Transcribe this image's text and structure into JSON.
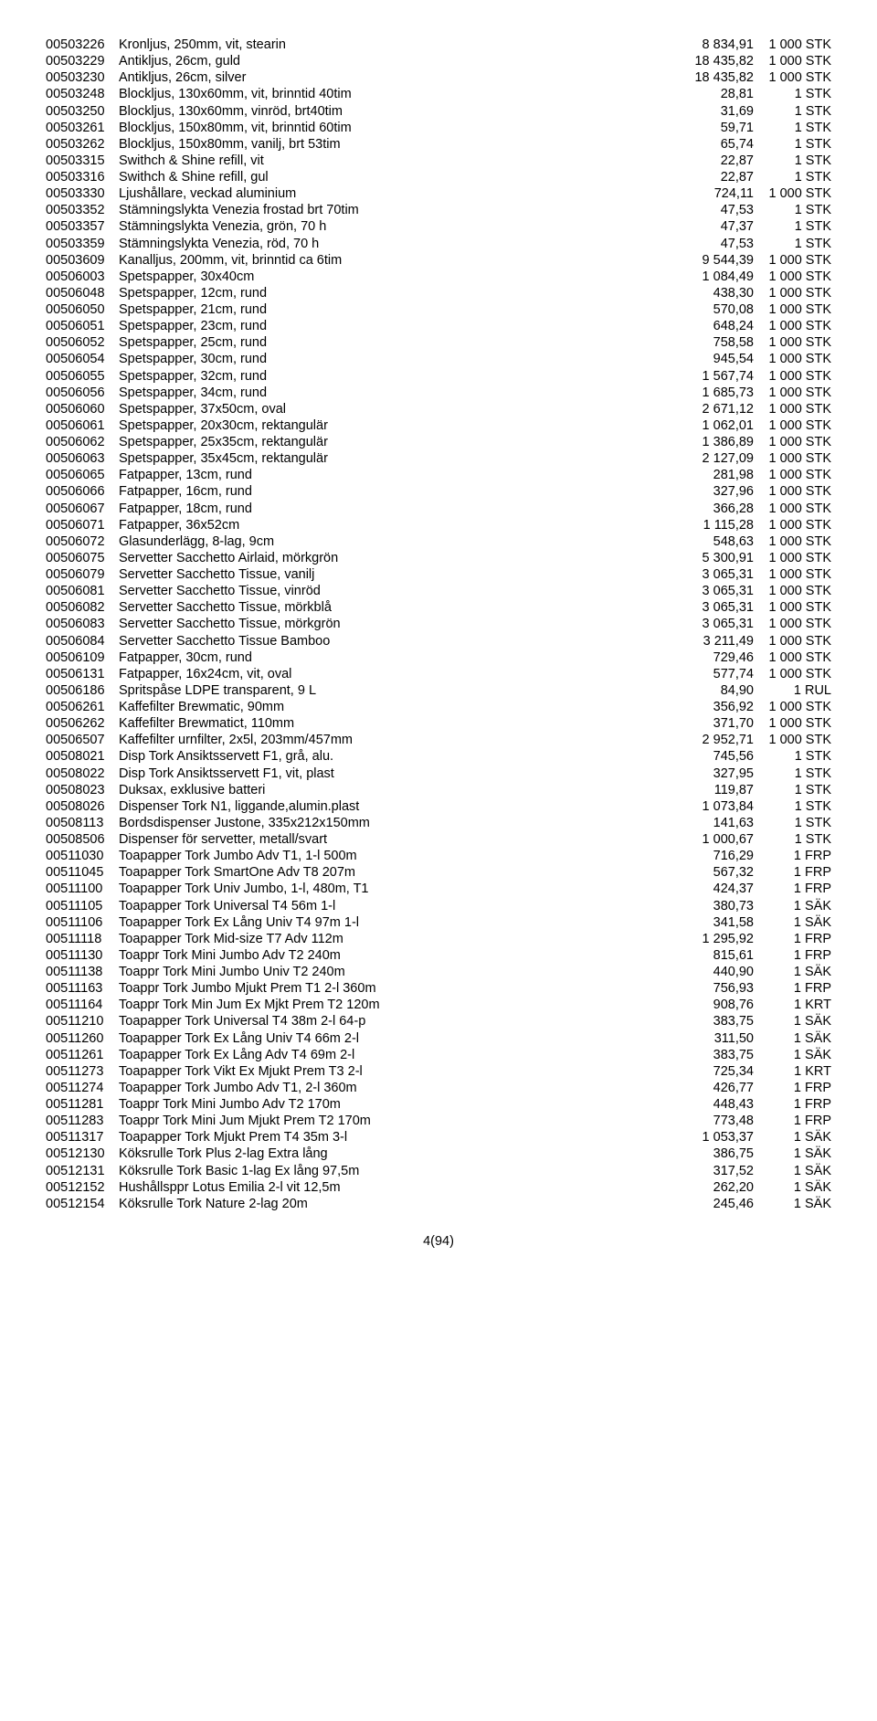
{
  "footer": "4(94)",
  "rows": [
    {
      "code": "00503226",
      "desc": "Kronljus, 250mm, vit, stearin",
      "price": "8 834,91",
      "qty": "1 000 STK"
    },
    {
      "code": "00503229",
      "desc": "Antikljus, 26cm, guld",
      "price": "18 435,82",
      "qty": "1 000 STK"
    },
    {
      "code": "00503230",
      "desc": "Antikljus, 26cm, silver",
      "price": "18 435,82",
      "qty": "1 000 STK"
    },
    {
      "code": "00503248",
      "desc": "Blockljus, 130x60mm, vit, brinntid 40tim",
      "price": "28,81",
      "qty": "1 STK"
    },
    {
      "code": "00503250",
      "desc": "Blockljus, 130x60mm, vinröd, brt40tim",
      "price": "31,69",
      "qty": "1 STK"
    },
    {
      "code": "00503261",
      "desc": "Blockljus, 150x80mm, vit, brinntid 60tim",
      "price": "59,71",
      "qty": "1 STK"
    },
    {
      "code": "00503262",
      "desc": "Blockljus, 150x80mm, vanilj, brt 53tim",
      "price": "65,74",
      "qty": "1 STK"
    },
    {
      "code": "00503315",
      "desc": "Swithch & Shine refill, vit",
      "price": "22,87",
      "qty": "1 STK"
    },
    {
      "code": "00503316",
      "desc": "Swithch & Shine refill, gul",
      "price": "22,87",
      "qty": "1 STK"
    },
    {
      "code": "00503330",
      "desc": "Ljushållare, veckad aluminium",
      "price": "724,11",
      "qty": "1 000 STK"
    },
    {
      "code": "00503352",
      "desc": "Stämningslykta Venezia frostad brt 70tim",
      "price": "47,53",
      "qty": "1 STK"
    },
    {
      "code": "00503357",
      "desc": "Stämningslykta Venezia, grön, 70 h",
      "price": "47,37",
      "qty": "1 STK"
    },
    {
      "code": "00503359",
      "desc": "Stämningslykta Venezia, röd, 70 h",
      "price": "47,53",
      "qty": "1 STK"
    },
    {
      "code": "00503609",
      "desc": "Kanalljus, 200mm, vit, brinntid ca 6tim",
      "price": "9 544,39",
      "qty": "1 000 STK"
    },
    {
      "code": "00506003",
      "desc": "Spetspapper, 30x40cm",
      "price": "1 084,49",
      "qty": "1 000 STK"
    },
    {
      "code": "00506048",
      "desc": "Spetspapper, 12cm, rund",
      "price": "438,30",
      "qty": "1 000 STK"
    },
    {
      "code": "00506050",
      "desc": "Spetspapper, 21cm, rund",
      "price": "570,08",
      "qty": "1 000 STK"
    },
    {
      "code": "00506051",
      "desc": "Spetspapper, 23cm, rund",
      "price": "648,24",
      "qty": "1 000 STK"
    },
    {
      "code": "00506052",
      "desc": "Spetspapper, 25cm, rund",
      "price": "758,58",
      "qty": "1 000 STK"
    },
    {
      "code": "00506054",
      "desc": "Spetspapper, 30cm, rund",
      "price": "945,54",
      "qty": "1 000 STK"
    },
    {
      "code": "00506055",
      "desc": "Spetspapper, 32cm, rund",
      "price": "1 567,74",
      "qty": "1 000 STK"
    },
    {
      "code": "00506056",
      "desc": "Spetspapper, 34cm, rund",
      "price": "1 685,73",
      "qty": "1 000 STK"
    },
    {
      "code": "00506060",
      "desc": "Spetspapper, 37x50cm, oval",
      "price": "2 671,12",
      "qty": "1 000 STK"
    },
    {
      "code": "00506061",
      "desc": "Spetspapper, 20x30cm, rektangulär",
      "price": "1 062,01",
      "qty": "1 000 STK"
    },
    {
      "code": "00506062",
      "desc": "Spetspapper, 25x35cm, rektangulär",
      "price": "1 386,89",
      "qty": "1 000 STK"
    },
    {
      "code": "00506063",
      "desc": "Spetspapper, 35x45cm, rektangulär",
      "price": "2 127,09",
      "qty": "1 000 STK"
    },
    {
      "code": "00506065",
      "desc": "Fatpapper, 13cm, rund",
      "price": "281,98",
      "qty": "1 000 STK"
    },
    {
      "code": "00506066",
      "desc": "Fatpapper, 16cm, rund",
      "price": "327,96",
      "qty": "1 000 STK"
    },
    {
      "code": "00506067",
      "desc": "Fatpapper, 18cm, rund",
      "price": "366,28",
      "qty": "1 000 STK"
    },
    {
      "code": "00506071",
      "desc": "Fatpapper, 36x52cm",
      "price": "1 115,28",
      "qty": "1 000 STK"
    },
    {
      "code": "00506072",
      "desc": "Glasunderlägg, 8-lag, 9cm",
      "price": "548,63",
      "qty": "1 000 STK"
    },
    {
      "code": "00506075",
      "desc": "Servetter Sacchetto Airlaid, mörkgrön",
      "price": "5 300,91",
      "qty": "1 000 STK"
    },
    {
      "code": "00506079",
      "desc": "Servetter Sacchetto Tissue, vanilj",
      "price": "3 065,31",
      "qty": "1 000 STK"
    },
    {
      "code": "00506081",
      "desc": "Servetter Sacchetto Tissue, vinröd",
      "price": "3 065,31",
      "qty": "1 000 STK"
    },
    {
      "code": "00506082",
      "desc": "Servetter Sacchetto Tissue, mörkblå",
      "price": "3 065,31",
      "qty": "1 000 STK"
    },
    {
      "code": "00506083",
      "desc": "Servetter Sacchetto Tissue, mörkgrön",
      "price": "3 065,31",
      "qty": "1 000 STK"
    },
    {
      "code": "00506084",
      "desc": "Servetter Sacchetto Tissue Bamboo",
      "price": "3 211,49",
      "qty": "1 000 STK"
    },
    {
      "code": "00506109",
      "desc": "Fatpapper, 30cm, rund",
      "price": "729,46",
      "qty": "1 000 STK"
    },
    {
      "code": "00506131",
      "desc": "Fatpapper, 16x24cm, vit, oval",
      "price": "577,74",
      "qty": "1 000 STK"
    },
    {
      "code": "00506186",
      "desc": "Spritspåse LDPE transparent, 9 L",
      "price": "84,90",
      "qty": "1 RUL"
    },
    {
      "code": "00506261",
      "desc": "Kaffefilter Brewmatic, 90mm",
      "price": "356,92",
      "qty": "1 000 STK"
    },
    {
      "code": "00506262",
      "desc": "Kaffefilter Brewmatict, 110mm",
      "price": "371,70",
      "qty": "1 000 STK"
    },
    {
      "code": "00506507",
      "desc": "Kaffefilter urnfilter, 2x5l, 203mm/457mm",
      "price": "2 952,71",
      "qty": "1 000 STK"
    },
    {
      "code": "00508021",
      "desc": "Disp Tork Ansiktsservett F1, grå, alu.",
      "price": "745,56",
      "qty": "1 STK"
    },
    {
      "code": "00508022",
      "desc": "Disp Tork Ansiktsservett F1, vit, plast",
      "price": "327,95",
      "qty": "1 STK"
    },
    {
      "code": "00508023",
      "desc": "Duksax, exklusive batteri",
      "price": "119,87",
      "qty": "1 STK"
    },
    {
      "code": "00508026",
      "desc": "Dispenser Tork N1, liggande,alumin.plast",
      "price": "1 073,84",
      "qty": "1 STK"
    },
    {
      "code": "00508113",
      "desc": "Bordsdispenser Justone, 335x212x150mm",
      "price": "141,63",
      "qty": "1 STK"
    },
    {
      "code": "00508506",
      "desc": "Dispenser för servetter, metall/svart",
      "price": "1 000,67",
      "qty": "1 STK"
    },
    {
      "code": "00511030",
      "desc": "Toapapper Tork Jumbo Adv T1, 1-l 500m",
      "price": "716,29",
      "qty": "1 FRP"
    },
    {
      "code": "00511045",
      "desc": "Toapapper Tork SmartOne Adv T8 207m",
      "price": "567,32",
      "qty": "1 FRP"
    },
    {
      "code": "00511100",
      "desc": "Toapapper Tork Univ Jumbo, 1-l, 480m, T1",
      "price": "424,37",
      "qty": "1 FRP"
    },
    {
      "code": "00511105",
      "desc": "Toapapper Tork Universal T4 56m 1-l",
      "price": "380,73",
      "qty": "1 SÄK"
    },
    {
      "code": "00511106",
      "desc": "Toapapper Tork Ex Lång Univ T4 97m 1-l",
      "price": "341,58",
      "qty": "1 SÄK"
    },
    {
      "code": "00511118",
      "desc": "Toapapper Tork Mid-size T7 Adv 112m",
      "price": "1 295,92",
      "qty": "1 FRP"
    },
    {
      "code": "00511130",
      "desc": "Toappr Tork Mini Jumbo Adv T2 240m",
      "price": "815,61",
      "qty": "1 FRP"
    },
    {
      "code": "00511138",
      "desc": "Toappr Tork Mini Jumbo Univ T2 240m",
      "price": "440,90",
      "qty": "1 SÄK"
    },
    {
      "code": "00511163",
      "desc": "Toappr Tork Jumbo Mjukt Prem T1 2-l 360m",
      "price": "756,93",
      "qty": "1 FRP"
    },
    {
      "code": "00511164",
      "desc": "Toappr Tork Min Jum Ex Mjkt Prem T2 120m",
      "price": "908,76",
      "qty": "1 KRT"
    },
    {
      "code": "00511210",
      "desc": "Toapapper Tork Universal T4 38m 2-l 64-p",
      "price": "383,75",
      "qty": "1 SÄK"
    },
    {
      "code": "00511260",
      "desc": "Toapapper Tork Ex Lång Univ T4 66m 2-l",
      "price": "311,50",
      "qty": "1 SÄK"
    },
    {
      "code": "00511261",
      "desc": "Toapapper Tork Ex Lång Adv T4 69m 2-l",
      "price": "383,75",
      "qty": "1 SÄK"
    },
    {
      "code": "00511273",
      "desc": "Toapapper Tork Vikt Ex Mjukt Prem T3 2-l",
      "price": "725,34",
      "qty": "1 KRT"
    },
    {
      "code": "00511274",
      "desc": "Toapapper Tork Jumbo Adv T1, 2-l 360m",
      "price": "426,77",
      "qty": "1 FRP"
    },
    {
      "code": "00511281",
      "desc": "Toappr Tork Mini Jumbo Adv T2 170m",
      "price": "448,43",
      "qty": "1 FRP"
    },
    {
      "code": "00511283",
      "desc": "Toappr Tork Mini Jum Mjukt Prem T2 170m",
      "price": "773,48",
      "qty": "1 FRP"
    },
    {
      "code": "00511317",
      "desc": "Toapapper Tork Mjukt Prem T4 35m 3-l",
      "price": "1 053,37",
      "qty": "1 SÄK"
    },
    {
      "code": "00512130",
      "desc": "Köksrulle Tork Plus 2-lag Extra lång",
      "price": "386,75",
      "qty": "1 SÄK"
    },
    {
      "code": "00512131",
      "desc": "Köksrulle Tork Basic 1-lag Ex lång 97,5m",
      "price": "317,52",
      "qty": "1 SÄK"
    },
    {
      "code": "00512152",
      "desc": "Hushållsppr Lotus Emilia 2-l vit 12,5m",
      "price": "262,20",
      "qty": "1 SÄK"
    },
    {
      "code": "00512154",
      "desc": "Köksrulle Tork Nature 2-lag 20m",
      "price": "245,46",
      "qty": "1 SÄK"
    }
  ]
}
